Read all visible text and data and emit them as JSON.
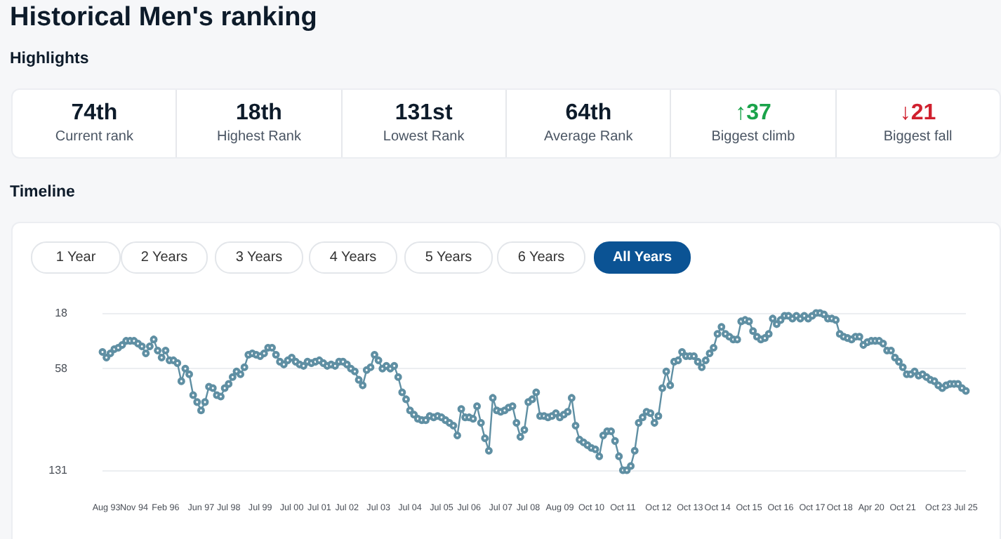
{
  "chart_data": [
    {
      "type": "other",
      "title": "Historical Men's ranking",
      "subtitle": "Highlights",
      "annotations": [
        "74th",
        "Current rank",
        "18th",
        "Highest Rank",
        "131st",
        "Lowest Rank",
        "64th",
        "Average Rank",
        "↑37",
        "Biggest climb",
        "↓21",
        "Biggest fall"
      ]
    },
    {
      "type": "line",
      "title": "Timeline",
      "annotations": [
        "1 Year",
        "2 Years",
        "3 Years",
        "4 Years",
        "5 Years",
        "6 Years",
        "All Years"
      ],
      "categories": [
        null,
        "Aug 93",
        null,
        null,
        null,
        null,
        null,
        null,
        "Nov 94",
        null,
        null,
        null,
        null,
        null,
        null,
        null,
        "Feb 96",
        null,
        null,
        null,
        null,
        null,
        null,
        null,
        null,
        "Jun 97",
        null,
        null,
        null,
        null,
        null,
        null,
        "Jul 98",
        null,
        null,
        null,
        null,
        null,
        null,
        null,
        "Jul 99",
        null,
        null,
        null,
        null,
        null,
        null,
        null,
        "Jul 00",
        null,
        null,
        null,
        null,
        null,
        null,
        "Jul 01",
        null,
        null,
        null,
        null,
        null,
        null,
        "Jul 02",
        null,
        null,
        null,
        null,
        null,
        null,
        null,
        "Jul 03",
        null,
        null,
        null,
        null,
        null,
        null,
        null,
        "Jul 04",
        null,
        null,
        null,
        null,
        null,
        null,
        null,
        "Jul 05",
        null,
        null,
        null,
        null,
        null,
        null,
        "Jul 06",
        null,
        null,
        null,
        null,
        null,
        null,
        null,
        "Jul 07",
        null,
        null,
        null,
        null,
        null,
        null,
        "Jul 08",
        null,
        null,
        null,
        null,
        null,
        null,
        null,
        "Aug 09",
        null,
        null,
        null,
        null,
        null,
        null,
        null,
        "Oct 10",
        null,
        null,
        null,
        null,
        null,
        null,
        null,
        "Oct 11",
        null,
        null,
        null,
        null,
        null,
        null,
        null,
        null,
        "Oct 12",
        null,
        null,
        null,
        null,
        null,
        null,
        null,
        "Oct 13",
        null,
        null,
        null,
        null,
        null,
        null,
        "Oct 14",
        null,
        null,
        null,
        null,
        null,
        null,
        null,
        "Oct 15",
        null,
        null,
        null,
        null,
        null,
        null,
        null,
        "Oct 16",
        null,
        null,
        null,
        null,
        null,
        null,
        null,
        "Oct 17",
        null,
        null,
        null,
        null,
        null,
        null,
        "Oct 18",
        null,
        null,
        null,
        null,
        null,
        null,
        null,
        "Apr 20",
        null,
        null,
        null,
        null,
        null,
        null,
        null,
        "Oct 21",
        null,
        null,
        null,
        null,
        null,
        null,
        null,
        null,
        "Oct 23",
        null,
        null,
        null,
        null,
        null,
        null,
        "Jul 25"
      ],
      "series": [
        {
          "color": "#5f8fa3",
          "values": [
            46,
            50,
            47,
            44,
            43,
            41,
            38,
            38,
            38,
            40,
            42,
            47,
            42,
            37,
            45,
            50,
            45,
            52,
            52,
            54,
            67,
            58,
            62,
            77,
            82,
            88,
            82,
            71,
            72,
            77,
            78,
            72,
            69,
            64,
            60,
            62,
            57,
            48,
            47,
            48,
            49,
            47,
            43,
            43,
            48,
            53,
            55,
            52,
            50,
            53,
            55,
            56,
            53,
            54,
            53,
            52,
            54,
            56,
            55,
            56,
            53,
            53,
            55,
            58,
            60,
            66,
            70,
            59,
            57,
            48,
            52,
            58,
            56,
            58,
            56,
            64,
            75,
            80,
            88,
            91,
            94,
            95,
            95,
            92,
            93,
            92,
            93,
            95,
            97,
            99,
            106,
            87,
            93,
            93,
            94,
            85,
            97,
            108,
            117,
            79,
            88,
            89,
            88,
            86,
            85,
            97,
            107,
            102,
            82,
            80,
            75,
            92,
            92,
            93,
            92,
            90,
            93,
            91,
            89,
            79,
            99,
            109,
            111,
            113,
            115,
            116,
            121,
            106,
            103,
            103,
            110,
            121,
            131,
            131,
            128,
            117,
            97,
            93,
            89,
            90,
            97,
            92,
            72,
            60,
            70,
            53,
            52,
            46,
            49,
            49,
            49,
            53,
            57,
            52,
            47,
            43,
            33,
            28,
            33,
            35,
            37,
            37,
            24,
            23,
            24,
            31,
            35,
            37,
            36,
            33,
            22,
            26,
            23,
            20,
            20,
            22,
            20,
            22,
            20,
            22,
            20,
            18,
            18,
            19,
            22,
            22,
            23,
            33,
            35,
            36,
            37,
            35,
            35,
            41,
            39,
            38,
            38,
            38,
            40,
            45,
            45,
            50,
            53,
            57,
            62,
            62,
            60,
            63,
            62,
            64,
            66,
            67,
            70,
            72,
            70,
            69,
            69,
            69,
            72,
            74
          ]
        }
      ],
      "ylim": [
        131,
        18
      ],
      "yticks": [
        18,
        58,
        131
      ],
      "grid": "y",
      "marker": "circle",
      "line_style": "solid"
    }
  ]
}
